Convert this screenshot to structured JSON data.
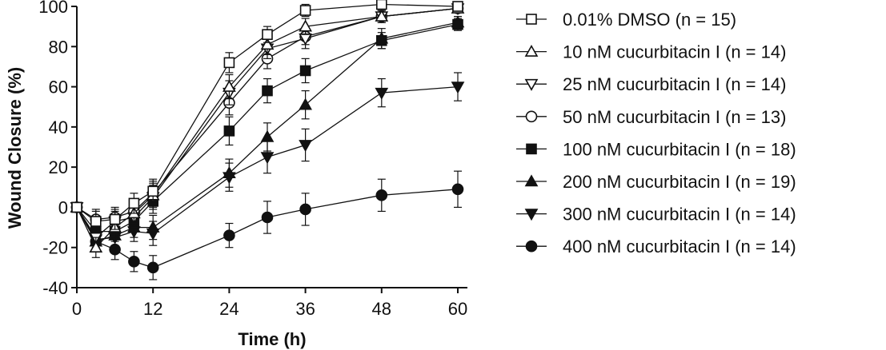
{
  "chart_data": {
    "type": "line",
    "xlabel": "Time (h)",
    "ylabel": "Wound Closure (%)",
    "xlim": [
      0,
      60
    ],
    "ylim": [
      -40,
      100
    ],
    "x_ticks": [
      "0",
      "12",
      "24",
      "36",
      "48",
      "60"
    ],
    "y_ticks": [
      "-40",
      "-20",
      "0",
      "20",
      "40",
      "60",
      "80",
      "100"
    ],
    "x": [
      0,
      3,
      6,
      9,
      12,
      24,
      30,
      36,
      48,
      60
    ],
    "grid": false,
    "legend_position": "right",
    "series": [
      {
        "name": "0.01% DMSO",
        "n_label": "(n = 15)",
        "marker": "square-open",
        "values": [
          0,
          -7,
          -6,
          2,
          8,
          72,
          86,
          98,
          101,
          100
        ],
        "errors": [
          0,
          5,
          5,
          5,
          6,
          5,
          4,
          3,
          2,
          2
        ]
      },
      {
        "name": "10 nM cucurbitacin I",
        "n_label": "(n = 14)",
        "marker": "triangle-up-open",
        "values": [
          0,
          -20,
          -10,
          -3,
          6,
          60,
          81,
          90,
          95,
          99
        ],
        "errors": [
          0,
          5,
          5,
          5,
          6,
          6,
          5,
          4,
          3,
          2
        ]
      },
      {
        "name": "25 nM cucurbitacin I",
        "n_label": "(n = 14)",
        "marker": "triangle-down-open",
        "values": [
          0,
          -15,
          -7,
          -5,
          5,
          57,
          79,
          84,
          95,
          99
        ],
        "errors": [
          0,
          5,
          5,
          5,
          6,
          6,
          5,
          5,
          3,
          2
        ]
      },
      {
        "name": "50 nM cucurbitacin I",
        "n_label": "(n = 13)",
        "marker": "circle-open",
        "values": [
          0,
          -6,
          -5,
          -2,
          7,
          52,
          74,
          85,
          95,
          99
        ],
        "errors": [
          0,
          5,
          5,
          5,
          6,
          6,
          5,
          4,
          3,
          2
        ]
      },
      {
        "name": "100 nM cucurbitacin I",
        "n_label": "(n = 18)",
        "marker": "square-filled",
        "values": [
          0,
          -12,
          -12,
          -7,
          3,
          38,
          58,
          68,
          83,
          91
        ],
        "errors": [
          0,
          5,
          5,
          5,
          6,
          7,
          6,
          6,
          4,
          3
        ]
      },
      {
        "name": "200 nM cucurbitacin I",
        "n_label": "(n = 19)",
        "marker": "triangle-up-filled",
        "values": [
          0,
          -17,
          -14,
          -10,
          -10,
          17,
          35,
          51,
          84,
          92
        ],
        "errors": [
          0,
          5,
          5,
          5,
          6,
          7,
          7,
          7,
          5,
          3
        ]
      },
      {
        "name": "300 nM cucurbitacin I",
        "n_label": "(n = 14)",
        "marker": "triangle-down-filled",
        "values": [
          0,
          -16,
          -15,
          -12,
          -13,
          15,
          25,
          31,
          57,
          60
        ],
        "errors": [
          0,
          5,
          5,
          5,
          6,
          7,
          8,
          8,
          7,
          7
        ]
      },
      {
        "name": "400 nM cucurbitacin I",
        "n_label": "(n = 14)",
        "marker": "circle-filled",
        "values": [
          0,
          -17,
          -21,
          -27,
          -30,
          -14,
          -5,
          -1,
          6,
          9
        ],
        "errors": [
          0,
          5,
          5,
          5,
          6,
          6,
          8,
          8,
          8,
          9
        ]
      }
    ]
  }
}
